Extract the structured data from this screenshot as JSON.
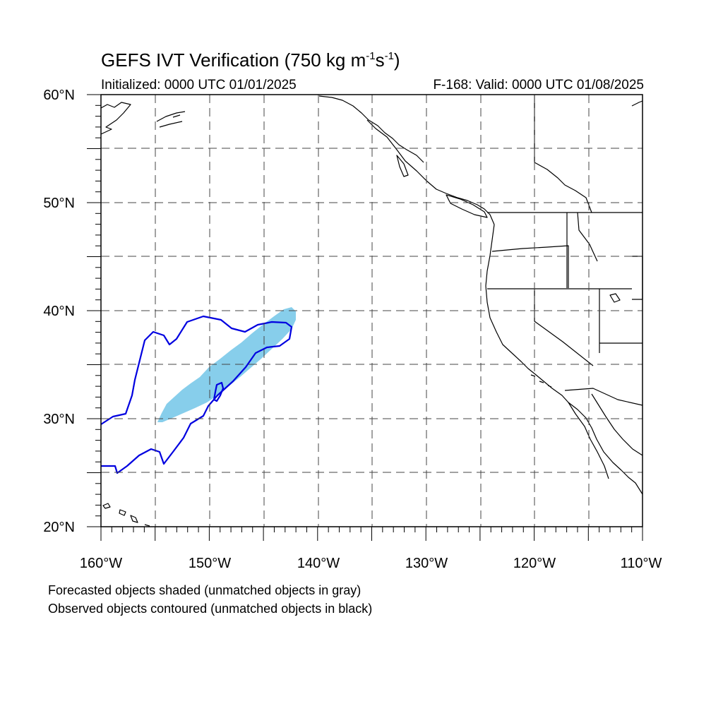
{
  "title": {
    "main": "GEFS IVT Verification (750 kg m",
    "exp1": "-1",
    "mid": "s",
    "exp2": "-1",
    "end": ")"
  },
  "initialized": "Initialized: 0000 UTC 01/01/2025",
  "valid": "F-168: Valid: 0000 UTC 01/08/2025",
  "map": {
    "lon_range": [
      -160,
      -110
    ],
    "lat_range": [
      20,
      60
    ],
    "projection": "cylindrical equidistant",
    "gridlines": "dashed every 5 degrees",
    "lat_labels": [
      "20°N",
      "30°N",
      "40°N",
      "50°N",
      "60°N"
    ],
    "lon_labels": [
      "160°W",
      "150°W",
      "140°W",
      "130°W",
      "120°W",
      "110°W"
    ],
    "forecast_fill_color": "#87ceeb",
    "observed_contour_color": "#0000e0",
    "coastline_color": "#000000"
  },
  "legend": {
    "line1": "Forecasted objects shaded (unmatched objects in gray)",
    "line2": "Observed objects contoured (unmatched objects in black)"
  }
}
